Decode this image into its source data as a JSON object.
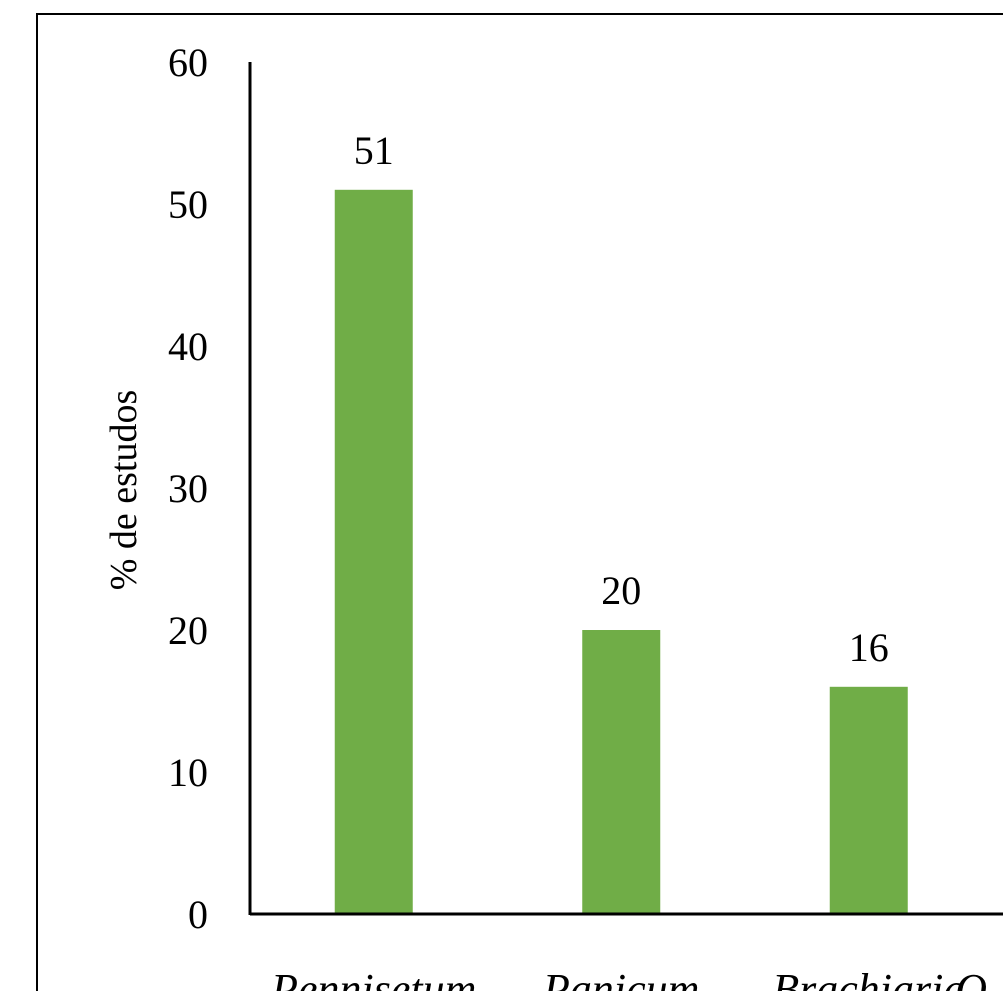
{
  "chart_data": {
    "type": "bar",
    "y_label": "% de estudos",
    "categories": [
      "Pennisetum",
      "Panicum",
      "Brachiaria",
      "O"
    ],
    "values": [
      51,
      20,
      16,
      null
    ],
    "color": "#70ad47",
    "ylim": [
      0,
      60
    ],
    "yticks": [
      0,
      10,
      20,
      30,
      40,
      50,
      60
    ],
    "grid": false
  }
}
